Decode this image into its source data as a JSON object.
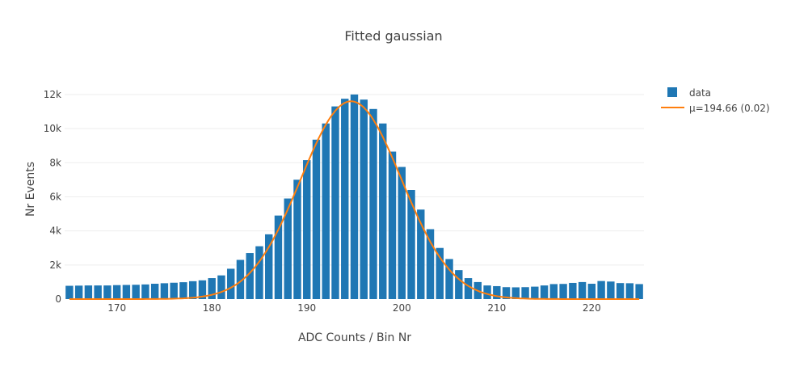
{
  "chart_data": {
    "type": "bar",
    "title": "Fitted gaussian",
    "xlabel": "ADC Counts / Bin Nr",
    "ylabel": "Nr Events",
    "xlim": [
      164.5,
      225.5
    ],
    "ylim": [
      0,
      12800
    ],
    "x_ticks": [
      170,
      180,
      190,
      200,
      210,
      220
    ],
    "y_ticks": [
      0,
      2000,
      4000,
      6000,
      8000,
      10000,
      12000
    ],
    "y_tick_labels": [
      "0",
      "2k",
      "4k",
      "6k",
      "8k",
      "10k",
      "12k"
    ],
    "grid": true,
    "legend_position": "top-right",
    "colors": {
      "bars": "#1f77b4",
      "fit": "#ff7f0e",
      "grid": "#eeeeee",
      "text": "#444444"
    },
    "series": [
      {
        "name": "data",
        "kind": "bar",
        "x": [
          165,
          166,
          167,
          168,
          169,
          170,
          171,
          172,
          173,
          174,
          175,
          176,
          177,
          178,
          179,
          180,
          181,
          182,
          183,
          184,
          185,
          186,
          187,
          188,
          189,
          190,
          191,
          192,
          193,
          194,
          195,
          196,
          197,
          198,
          199,
          200,
          201,
          202,
          203,
          204,
          205,
          206,
          207,
          208,
          209,
          210,
          211,
          212,
          213,
          214,
          215,
          216,
          217,
          218,
          219,
          220,
          221,
          222,
          223,
          224,
          225
        ],
        "values": [
          780,
          790,
          800,
          800,
          800,
          820,
          830,
          840,
          860,
          900,
          930,
          960,
          990,
          1050,
          1100,
          1230,
          1390,
          1780,
          2300,
          2700,
          3100,
          3800,
          4900,
          5900,
          7000,
          8150,
          9350,
          10300,
          11300,
          11750,
          12000,
          11700,
          11150,
          10300,
          8650,
          7750,
          6400,
          5250,
          4100,
          3000,
          2350,
          1700,
          1230,
          1000,
          800,
          760,
          700,
          690,
          700,
          730,
          800,
          880,
          890,
          950,
          1000,
          900,
          1060,
          1030,
          940,
          930,
          880
        ]
      },
      {
        "name": "μ=194.66 (0.02)",
        "kind": "line",
        "model": "gaussian",
        "mean": 194.66,
        "mean_error": 0.02,
        "sigma": 5.3,
        "amplitude": 11600,
        "x_range": [
          165,
          225
        ]
      }
    ]
  }
}
